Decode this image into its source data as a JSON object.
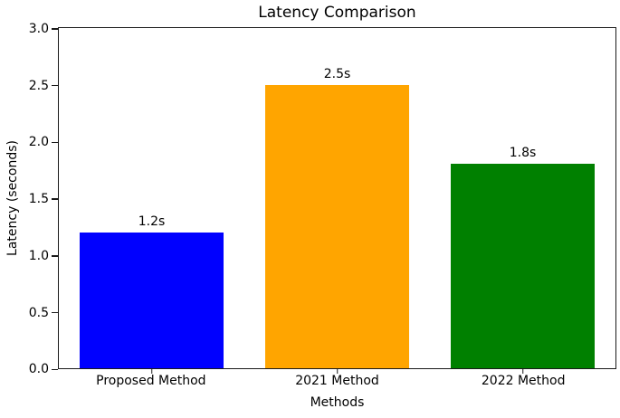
{
  "chart_data": {
    "type": "bar",
    "title": "Latency Comparison",
    "xlabel": "Methods",
    "ylabel": "Latency (seconds)",
    "categories": [
      "Proposed Method",
      "2021 Method",
      "2022 Method"
    ],
    "values": [
      1.2,
      2.5,
      1.8
    ],
    "value_labels": [
      "1.2s",
      "2.5s",
      "1.8s"
    ],
    "bar_colors": [
      "#0000ff",
      "#ffa500",
      "#008000"
    ],
    "ylim": [
      0.0,
      3.0
    ],
    "yticks": [
      0.0,
      0.5,
      1.0,
      1.5,
      2.0,
      2.5,
      3.0
    ],
    "ytick_labels": [
      "0.0",
      "0.5",
      "1.0",
      "1.5",
      "2.0",
      "2.5",
      "3.0"
    ],
    "grid": false,
    "legend": null,
    "spine_color": "#1a1a1a"
  }
}
